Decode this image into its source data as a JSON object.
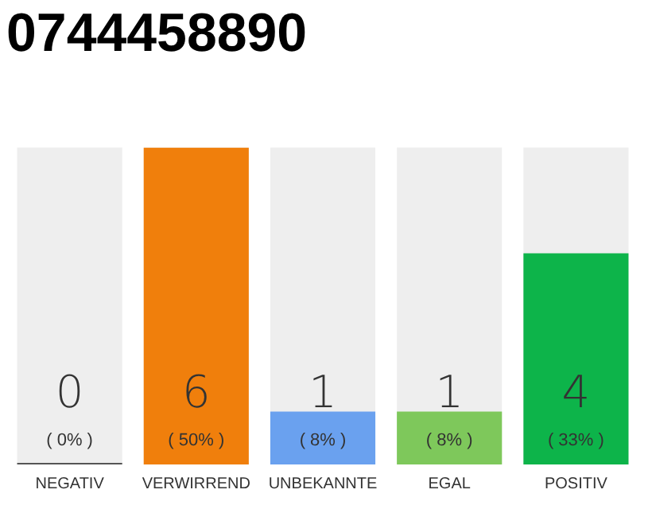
{
  "chart_data": {
    "type": "bar",
    "title": "0744458890",
    "categories": [
      "NEGATIV",
      "VERWIRREND",
      "UNBEKANNTE",
      "EGAL",
      "POSITIV"
    ],
    "values": [
      0,
      6,
      1,
      1,
      4
    ],
    "annotations": [
      "( 0% )",
      "( 50% )",
      "( 8% )",
      "( 8% )",
      "( 33% )"
    ],
    "colors": [
      "#555555",
      "#f07f0c",
      "#6aa1ef",
      "#7ec85b",
      "#0db44a"
    ],
    "data_labels": true,
    "grid": false,
    "legend": false
  }
}
